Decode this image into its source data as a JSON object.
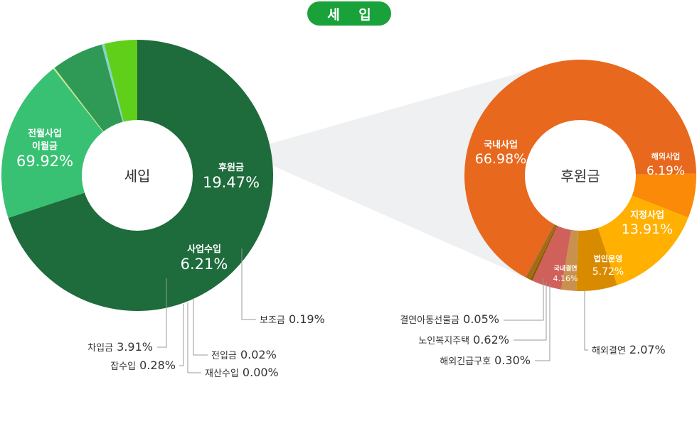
{
  "title": "세 입",
  "chart_data": [
    {
      "type": "pie",
      "id": "main",
      "center_label": "세입",
      "slices": [
        {
          "label": "전월사업 이월금",
          "value": 69.92,
          "display": "69.92%",
          "color": "#1e6b3c"
        },
        {
          "label": "후원금",
          "value": 19.47,
          "display": "19.47%",
          "color": "#38c172"
        },
        {
          "label": "보조금",
          "value": 0.19,
          "display": "0.19%",
          "color": "#c8e68f"
        },
        {
          "label": "사업수입",
          "value": 6.21,
          "display": "6.21%",
          "color": "#2e9a55"
        },
        {
          "label": "전입금",
          "value": 0.02,
          "display": "0.02%",
          "color": "#6b6b6b"
        },
        {
          "label": "재산수입",
          "value": 0.0,
          "display": "0.00%",
          "color": "#bbbbbb"
        },
        {
          "label": "잡수입",
          "value": 0.28,
          "display": "0.28%",
          "color": "#7fd6cf"
        },
        {
          "label": "차입금",
          "value": 3.91,
          "display": "3.91%",
          "color": "#5fcf1a"
        }
      ]
    },
    {
      "type": "pie",
      "id": "sub",
      "center_label": "후원금",
      "slices": [
        {
          "label": "국내사업",
          "value": 66.98,
          "display": "66.98%",
          "color": "#e8681e"
        },
        {
          "label": "해외사업",
          "value": 6.19,
          "display": "6.19%",
          "color": "#fa8a07"
        },
        {
          "label": "지정사업",
          "value": 13.91,
          "display": "13.91%",
          "color": "#ffb000"
        },
        {
          "label": "법인운영",
          "value": 5.72,
          "display": "5.72%",
          "color": "#d98b00"
        },
        {
          "label": "해외결연",
          "value": 2.07,
          "display": "2.07%",
          "color": "#c8924e"
        },
        {
          "label": "국내결연",
          "value": 4.16,
          "display": "4.16%",
          "color": "#d0605a"
        },
        {
          "label": "해외긴급구호",
          "value": 0.3,
          "display": "0.30%",
          "color": "#8a5a00"
        },
        {
          "label": "노인복지주택",
          "value": 0.62,
          "display": "0.62%",
          "color": "#a66a10"
        },
        {
          "label": "결연아동선물금",
          "value": 0.05,
          "display": "0.05%",
          "color": "#555555"
        }
      ]
    }
  ]
}
